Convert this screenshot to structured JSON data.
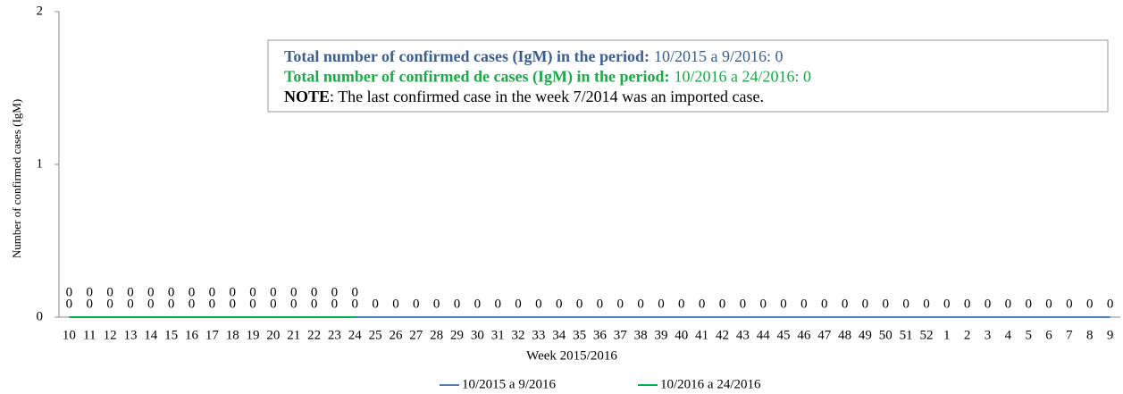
{
  "chart_data": {
    "type": "line",
    "ylabel": "Number of confirmed cases (IgM)",
    "xlabel": "Week 2015/2016",
    "categories": [
      "10",
      "11",
      "12",
      "13",
      "14",
      "15",
      "16",
      "17",
      "18",
      "19",
      "20",
      "21",
      "22",
      "23",
      "24",
      "25",
      "26",
      "27",
      "28",
      "29",
      "30",
      "31",
      "32",
      "33",
      "34",
      "35",
      "36",
      "37",
      "38",
      "39",
      "40",
      "41",
      "42",
      "43",
      "44",
      "45",
      "46",
      "47",
      "48",
      "49",
      "50",
      "51",
      "52",
      "1",
      "2",
      "3",
      "4",
      "5",
      "6",
      "7",
      "8",
      "9"
    ],
    "series": [
      {
        "name": "10/2015 a 9/2016",
        "color": "#4a7ebb",
        "values": [
          0,
          0,
          0,
          0,
          0,
          0,
          0,
          0,
          0,
          0,
          0,
          0,
          0,
          0,
          0,
          0,
          0,
          0,
          0,
          0,
          0,
          0,
          0,
          0,
          0,
          0,
          0,
          0,
          0,
          0,
          0,
          0,
          0,
          0,
          0,
          0,
          0,
          0,
          0,
          0,
          0,
          0,
          0,
          0,
          0,
          0,
          0,
          0,
          0,
          0,
          0,
          0
        ]
      },
      {
        "name": "10/2016 a 24/2016",
        "color": "#00b050",
        "values": [
          0,
          0,
          0,
          0,
          0,
          0,
          0,
          0,
          0,
          0,
          0,
          0,
          0,
          0,
          0,
          null,
          null,
          null,
          null,
          null,
          null,
          null,
          null,
          null,
          null,
          null,
          null,
          null,
          null,
          null,
          null,
          null,
          null,
          null,
          null,
          null,
          null,
          null,
          null,
          null,
          null,
          null,
          null,
          null,
          null,
          null,
          null,
          null,
          null,
          null,
          null,
          null
        ]
      }
    ],
    "ylim": [
      0,
      2
    ],
    "yticks": [
      0,
      1,
      2
    ],
    "annotations": [
      {
        "bold": "Total number of confirmed cases (IgM) in the period:",
        "text": "10/2015 a 9/2016: 0",
        "color": "#3d5f8e"
      },
      {
        "bold": "Total number of confirmed de cases (IgM) in the period:",
        "text": "10/2016 a 24/2016: 0",
        "color": "#1ea84a"
      },
      {
        "bold": "NOTE",
        "text": ": The last confirmed case in the week 7/2014 was an imported case.",
        "color": "#000000"
      }
    ]
  }
}
